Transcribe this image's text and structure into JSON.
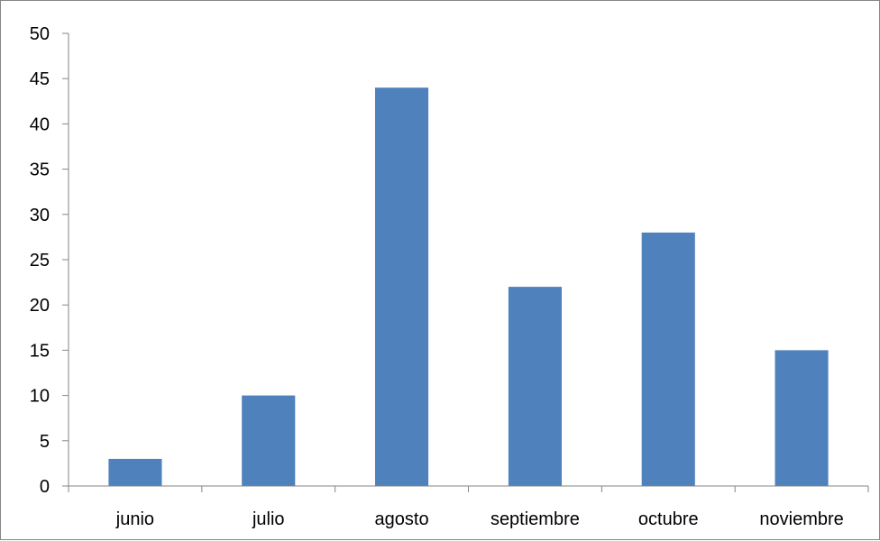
{
  "chart_data": {
    "type": "bar",
    "categories": [
      "junio",
      "julio",
      "agosto",
      "septiembre",
      "octubre",
      "noviembre"
    ],
    "values": [
      3,
      10,
      44,
      22,
      28,
      15
    ],
    "title": "",
    "xlabel": "",
    "ylabel": "",
    "ylim": [
      0,
      50
    ],
    "yticks": [
      "0",
      "5",
      "10",
      "15",
      "20",
      "25",
      "30",
      "35",
      "40",
      "45",
      "50"
    ],
    "grid": false,
    "legend": "none",
    "bar_color": "#4F81BD",
    "axis_color": "#868686"
  }
}
